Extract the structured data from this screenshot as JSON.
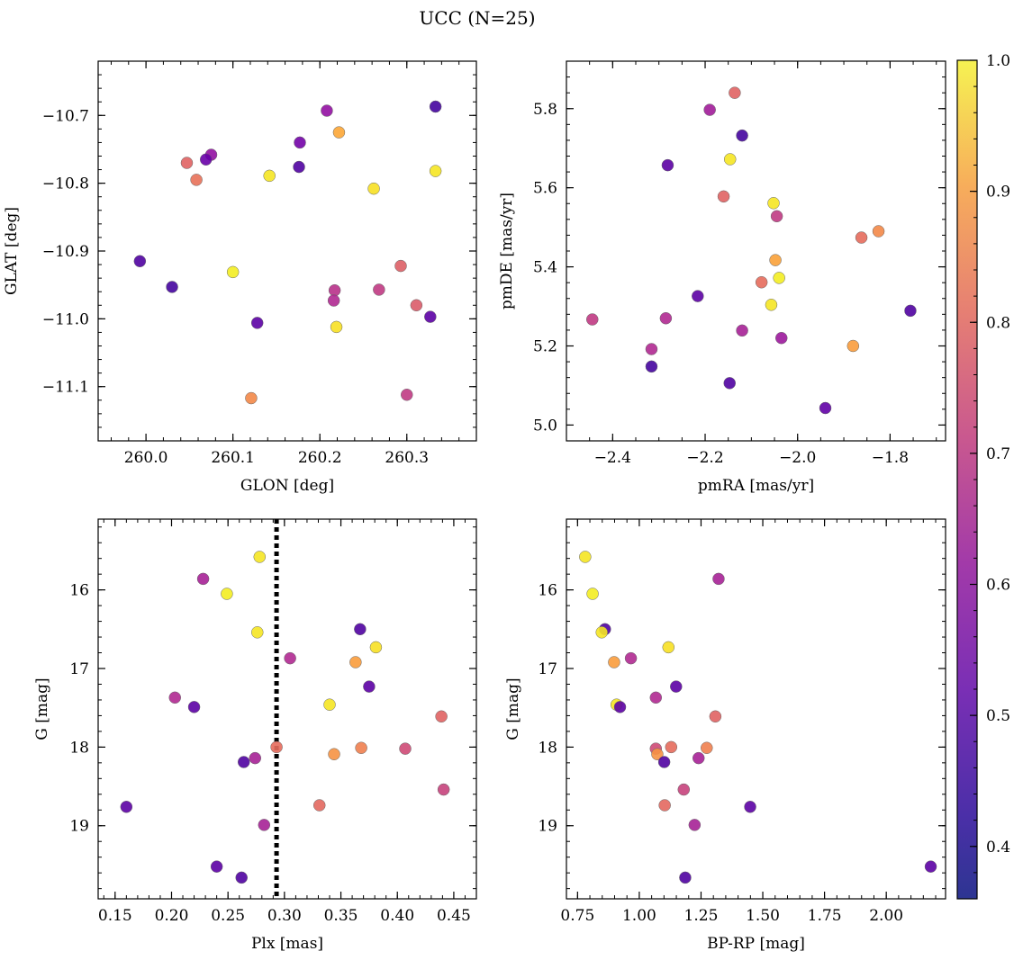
{
  "figure": {
    "title": "UCC (N=25)"
  },
  "chart_data": [
    {
      "type": "scatter",
      "xlabel": "GLON [deg]",
      "ylabel": "GLAT [deg]",
      "xlim": [
        259.945,
        260.38
      ],
      "ylim": [
        -11.18,
        -10.62
      ],
      "xticks": [
        260.0,
        260.1,
        260.2,
        260.3
      ],
      "xtick_labels": [
        "260.0",
        "260.1",
        "260.2",
        "260.3"
      ],
      "yticks": [
        -10.7,
        -10.8,
        -10.9,
        -11.0,
        -11.1
      ],
      "ytick_labels": [
        "−10.7",
        "−10.8",
        "−10.9",
        "−11.0",
        "−11.1"
      ],
      "points": [
        {
          "x": 260.333,
          "y": -10.687,
          "c": 0.38
        },
        {
          "x": 260.208,
          "y": -10.693,
          "c": 0.52
        },
        {
          "x": 260.222,
          "y": -10.725,
          "c": 0.86
        },
        {
          "x": 260.177,
          "y": -10.74,
          "c": 0.46
        },
        {
          "x": 260.075,
          "y": -10.758,
          "c": 0.52
        },
        {
          "x": 260.069,
          "y": -10.765,
          "c": 0.44
        },
        {
          "x": 260.047,
          "y": -10.77,
          "c": 0.72
        },
        {
          "x": 260.176,
          "y": -10.776,
          "c": 0.4
        },
        {
          "x": 260.333,
          "y": -10.782,
          "c": 0.97
        },
        {
          "x": 260.142,
          "y": -10.789,
          "c": 0.97
        },
        {
          "x": 260.058,
          "y": -10.795,
          "c": 0.75
        },
        {
          "x": 260.262,
          "y": -10.808,
          "c": 0.96
        },
        {
          "x": 259.993,
          "y": -10.915,
          "c": 0.4
        },
        {
          "x": 260.293,
          "y": -10.922,
          "c": 0.71
        },
        {
          "x": 260.1,
          "y": -10.931,
          "c": 0.98
        },
        {
          "x": 260.03,
          "y": -10.953,
          "c": 0.38
        },
        {
          "x": 260.268,
          "y": -10.957,
          "c": 0.62
        },
        {
          "x": 260.217,
          "y": -10.958,
          "c": 0.6
        },
        {
          "x": 260.216,
          "y": -10.973,
          "c": 0.58
        },
        {
          "x": 260.311,
          "y": -10.98,
          "c": 0.7
        },
        {
          "x": 260.327,
          "y": -10.997,
          "c": 0.42
        },
        {
          "x": 260.128,
          "y": -11.006,
          "c": 0.42
        },
        {
          "x": 260.219,
          "y": -11.012,
          "c": 0.96
        },
        {
          "x": 260.121,
          "y": -11.117,
          "c": 0.8
        },
        {
          "x": 260.3,
          "y": -11.112,
          "c": 0.62
        }
      ]
    },
    {
      "type": "scatter",
      "xlabel": "pmRA [mas/yr]",
      "ylabel": "pmDE [mas/yr]",
      "xlim": [
        -2.5,
        -1.68
      ],
      "ylim": [
        4.96,
        5.92
      ],
      "xticks": [
        -2.4,
        -2.2,
        -2.0,
        -1.8
      ],
      "xtick_labels": [
        "−2.4",
        "−2.2",
        "−2.0",
        "−1.8"
      ],
      "yticks": [
        5.0,
        5.2,
        5.4,
        5.6,
        5.8
      ],
      "ytick_labels": [
        "5.0",
        "5.2",
        "5.4",
        "5.6",
        "5.8"
      ],
      "points": [
        {
          "x": -2.136,
          "y": 5.84,
          "c": 0.72
        },
        {
          "x": -2.19,
          "y": 5.797,
          "c": 0.55
        },
        {
          "x": -2.12,
          "y": 5.732,
          "c": 0.38
        },
        {
          "x": -2.146,
          "y": 5.672,
          "c": 0.97
        },
        {
          "x": -2.281,
          "y": 5.657,
          "c": 0.42
        },
        {
          "x": -2.16,
          "y": 5.578,
          "c": 0.72
        },
        {
          "x": -2.052,
          "y": 5.561,
          "c": 0.97
        },
        {
          "x": -2.045,
          "y": 5.528,
          "c": 0.62
        },
        {
          "x": -1.825,
          "y": 5.49,
          "c": 0.8
        },
        {
          "x": -1.862,
          "y": 5.474,
          "c": 0.74
        },
        {
          "x": -2.048,
          "y": 5.417,
          "c": 0.85
        },
        {
          "x": -2.04,
          "y": 5.372,
          "c": 0.98
        },
        {
          "x": -2.078,
          "y": 5.361,
          "c": 0.74
        },
        {
          "x": -2.216,
          "y": 5.326,
          "c": 0.42
        },
        {
          "x": -2.057,
          "y": 5.304,
          "c": 0.97
        },
        {
          "x": -1.756,
          "y": 5.289,
          "c": 0.4
        },
        {
          "x": -2.444,
          "y": 5.267,
          "c": 0.62
        },
        {
          "x": -2.285,
          "y": 5.27,
          "c": 0.58
        },
        {
          "x": -2.12,
          "y": 5.239,
          "c": 0.56
        },
        {
          "x": -2.035,
          "y": 5.22,
          "c": 0.54
        },
        {
          "x": -1.88,
          "y": 5.2,
          "c": 0.84
        },
        {
          "x": -2.316,
          "y": 5.192,
          "c": 0.58
        },
        {
          "x": -2.316,
          "y": 5.148,
          "c": 0.38
        },
        {
          "x": -2.147,
          "y": 5.106,
          "c": 0.4
        },
        {
          "x": -1.94,
          "y": 5.043,
          "c": 0.43
        }
      ]
    },
    {
      "type": "scatter",
      "xlabel": "Plx [mas]",
      "ylabel": "G [mag]",
      "xlim": [
        0.135,
        0.47
      ],
      "ylim": [
        19.93,
        15.1
      ],
      "xticks": [
        0.15,
        0.2,
        0.25,
        0.3,
        0.35,
        0.4,
        0.45
      ],
      "xtick_labels": [
        "0.15",
        "0.20",
        "0.25",
        "0.30",
        "0.35",
        "0.40",
        "0.45"
      ],
      "yticks": [
        16,
        17,
        18,
        19
      ],
      "ytick_labels": [
        "16",
        "17",
        "18",
        "19"
      ],
      "vline": 0.293,
      "points": [
        {
          "x": 0.278,
          "y": 15.58,
          "c": 0.97
        },
        {
          "x": 0.228,
          "y": 15.86,
          "c": 0.56
        },
        {
          "x": 0.249,
          "y": 16.05,
          "c": 0.98
        },
        {
          "x": 0.367,
          "y": 16.5,
          "c": 0.4
        },
        {
          "x": 0.276,
          "y": 16.54,
          "c": 0.97
        },
        {
          "x": 0.381,
          "y": 16.73,
          "c": 0.96
        },
        {
          "x": 0.305,
          "y": 16.87,
          "c": 0.58
        },
        {
          "x": 0.363,
          "y": 16.92,
          "c": 0.84
        },
        {
          "x": 0.375,
          "y": 17.23,
          "c": 0.42
        },
        {
          "x": 0.203,
          "y": 17.37,
          "c": 0.58
        },
        {
          "x": 0.34,
          "y": 17.46,
          "c": 0.97
        },
        {
          "x": 0.22,
          "y": 17.49,
          "c": 0.42
        },
        {
          "x": 0.439,
          "y": 17.61,
          "c": 0.72
        },
        {
          "x": 0.293,
          "y": 18.0,
          "c": 0.74
        },
        {
          "x": 0.368,
          "y": 18.01,
          "c": 0.78
        },
        {
          "x": 0.407,
          "y": 18.02,
          "c": 0.66
        },
        {
          "x": 0.344,
          "y": 18.09,
          "c": 0.82
        },
        {
          "x": 0.274,
          "y": 18.14,
          "c": 0.56
        },
        {
          "x": 0.264,
          "y": 18.19,
          "c": 0.4
        },
        {
          "x": 0.441,
          "y": 18.54,
          "c": 0.64
        },
        {
          "x": 0.331,
          "y": 18.74,
          "c": 0.73
        },
        {
          "x": 0.16,
          "y": 18.76,
          "c": 0.42
        },
        {
          "x": 0.282,
          "y": 18.99,
          "c": 0.56
        },
        {
          "x": 0.24,
          "y": 19.52,
          "c": 0.42
        },
        {
          "x": 0.262,
          "y": 19.66,
          "c": 0.4
        }
      ]
    },
    {
      "type": "scatter",
      "xlabel": "BP-RP [mag]",
      "ylabel": "G [mag]",
      "xlim": [
        0.705,
        2.24
      ],
      "ylim": [
        19.93,
        15.1
      ],
      "xticks": [
        0.75,
        1.0,
        1.25,
        1.5,
        1.75,
        2.0
      ],
      "xtick_labels": [
        "0.75",
        "1.00",
        "1.25",
        "1.50",
        "1.75",
        "2.00"
      ],
      "yticks": [
        16,
        17,
        18,
        19
      ],
      "ytick_labels": [
        "16",
        "17",
        "18",
        "19"
      ],
      "points": [
        {
          "x": 0.781,
          "y": 15.58,
          "c": 0.97
        },
        {
          "x": 1.321,
          "y": 15.86,
          "c": 0.56
        },
        {
          "x": 0.811,
          "y": 16.05,
          "c": 0.98
        },
        {
          "x": 0.861,
          "y": 16.5,
          "c": 0.4
        },
        {
          "x": 0.848,
          "y": 16.54,
          "c": 0.97
        },
        {
          "x": 1.118,
          "y": 16.73,
          "c": 0.96
        },
        {
          "x": 0.966,
          "y": 16.87,
          "c": 0.58
        },
        {
          "x": 0.898,
          "y": 16.92,
          "c": 0.84
        },
        {
          "x": 1.149,
          "y": 17.23,
          "c": 0.42
        },
        {
          "x": 1.067,
          "y": 17.37,
          "c": 0.58
        },
        {
          "x": 0.908,
          "y": 17.46,
          "c": 0.97
        },
        {
          "x": 0.922,
          "y": 17.49,
          "c": 0.42
        },
        {
          "x": 1.308,
          "y": 17.61,
          "c": 0.72
        },
        {
          "x": 1.129,
          "y": 18.0,
          "c": 0.74
        },
        {
          "x": 1.273,
          "y": 18.01,
          "c": 0.78
        },
        {
          "x": 1.067,
          "y": 18.02,
          "c": 0.66
        },
        {
          "x": 1.073,
          "y": 18.09,
          "c": 0.82
        },
        {
          "x": 1.24,
          "y": 18.14,
          "c": 0.56
        },
        {
          "x": 1.101,
          "y": 18.19,
          "c": 0.4
        },
        {
          "x": 1.18,
          "y": 18.54,
          "c": 0.64
        },
        {
          "x": 1.103,
          "y": 18.74,
          "c": 0.73
        },
        {
          "x": 1.449,
          "y": 18.76,
          "c": 0.42
        },
        {
          "x": 1.224,
          "y": 18.99,
          "c": 0.56
        },
        {
          "x": 2.18,
          "y": 19.52,
          "c": 0.42
        },
        {
          "x": 1.186,
          "y": 19.66,
          "c": 0.4
        }
      ]
    }
  ],
  "colorbar": {
    "colormap": "plasma",
    "range": [
      0.36,
      1.0
    ],
    "ticks": [
      0.4,
      0.5,
      0.6,
      0.7,
      0.8,
      0.9,
      1.0
    ],
    "tick_labels": [
      "0.4",
      "0.5",
      "0.6",
      "0.7",
      "0.8",
      "0.9",
      "1.0"
    ]
  }
}
